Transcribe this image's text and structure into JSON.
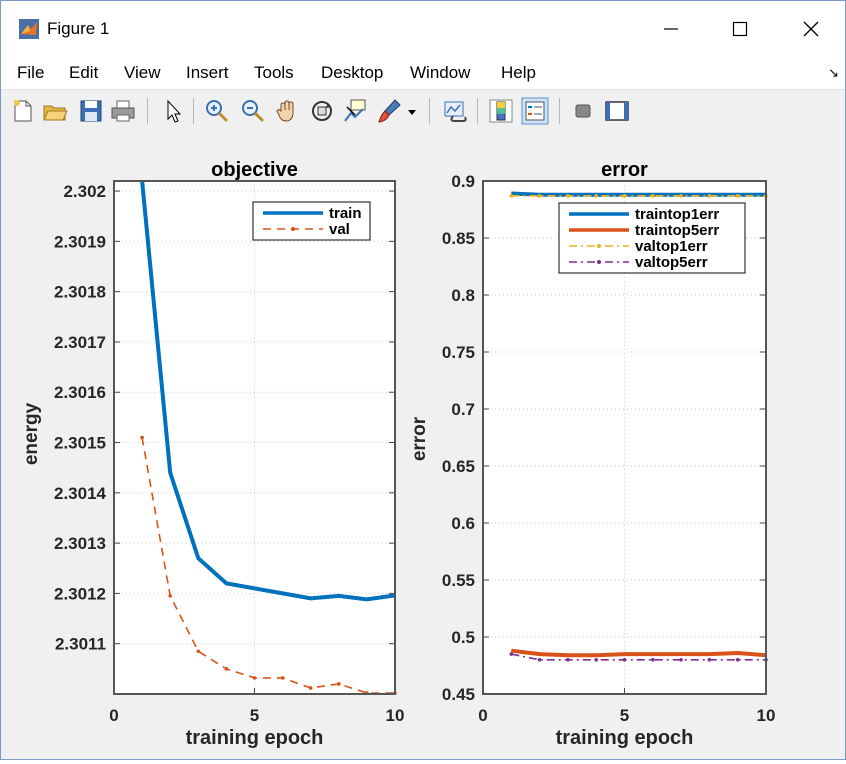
{
  "window": {
    "title": "Figure 1",
    "minimize_glyph": "—",
    "maximize_glyph": "☐",
    "close_glyph": "✕"
  },
  "menu": {
    "items": [
      "File",
      "Edit",
      "View",
      "Insert",
      "Tools",
      "Desktop",
      "Window",
      "Help"
    ],
    "corner_glyph": "↘"
  },
  "toolbar": {
    "icons": [
      "new-figure-icon",
      "open-file-icon",
      "save-icon",
      "print-icon",
      "edit-plot-icon",
      "zoom-in-icon",
      "zoom-out-icon",
      "pan-icon",
      "rotate-3d-icon",
      "data-cursor-icon",
      "brush-icon",
      "brush-dropdown-icon",
      "link-plot-icon",
      "colorbar-icon",
      "legend-icon",
      "hide-plot-tools-icon",
      "show-plot-tools-icon"
    ]
  },
  "colors": {
    "train": "#0072bd",
    "val": "#d95319",
    "valtop1": "#edb120",
    "valtop5": "#7e2f8e"
  },
  "chart_data": [
    {
      "type": "line",
      "title": "objective",
      "xlabel": "training epoch",
      "ylabel": "energy",
      "xlim": [
        0,
        10
      ],
      "ylim": [
        2.301,
        2.30202
      ],
      "xticks": [
        "0",
        "5",
        "10"
      ],
      "yticks": [
        "2.3011",
        "2.3012",
        "2.3013",
        "2.3014",
        "2.3015",
        "2.3016",
        "2.3017",
        "2.3018",
        "2.3019",
        "2.302"
      ],
      "grid": "dotted",
      "legend_position": "top-right",
      "x": [
        1,
        2,
        3,
        4,
        5,
        6,
        7,
        8,
        9,
        10
      ],
      "series": [
        {
          "name": "train",
          "style": "solid",
          "values": [
            2.30202,
            2.30144,
            2.30127,
            2.30122,
            2.30121,
            2.3012,
            2.30119,
            2.301195,
            2.301188,
            2.301196
          ]
        },
        {
          "name": "val",
          "style": "dashed",
          "values": [
            2.30151,
            2.301195,
            2.301085,
            2.30105,
            2.301032,
            2.301032,
            2.301012,
            2.30102,
            2.301002,
            2.301002
          ]
        }
      ]
    },
    {
      "type": "line",
      "title": "error",
      "xlabel": "training epoch",
      "ylabel": "error",
      "xlim": [
        0,
        10
      ],
      "ylim": [
        0.45,
        0.9
      ],
      "xticks": [
        "0",
        "5",
        "10"
      ],
      "yticks": [
        "0.45",
        "0.5",
        "0.55",
        "0.6",
        "0.65",
        "0.7",
        "0.75",
        "0.8",
        "0.85",
        "0.9"
      ],
      "grid": "dotted",
      "legend_position": "top-right",
      "x": [
        1,
        2,
        3,
        4,
        5,
        6,
        7,
        8,
        9,
        10
      ],
      "series": [
        {
          "name": "traintop1err",
          "style": "solid",
          "values": [
            0.889,
            0.888,
            0.888,
            0.888,
            0.888,
            0.888,
            0.888,
            0.888,
            0.888,
            0.888
          ]
        },
        {
          "name": "traintop5err",
          "style": "solid",
          "values": [
            0.488,
            0.485,
            0.484,
            0.484,
            0.485,
            0.485,
            0.485,
            0.485,
            0.486,
            0.484
          ]
        },
        {
          "name": "valtop1err",
          "style": "dashdot",
          "values": [
            0.887,
            0.887,
            0.887,
            0.887,
            0.887,
            0.887,
            0.887,
            0.887,
            0.887,
            0.887
          ]
        },
        {
          "name": "valtop5err",
          "style": "dashdot",
          "values": [
            0.485,
            0.48,
            0.48,
            0.48,
            0.48,
            0.48,
            0.48,
            0.48,
            0.48,
            0.48
          ]
        }
      ]
    }
  ]
}
